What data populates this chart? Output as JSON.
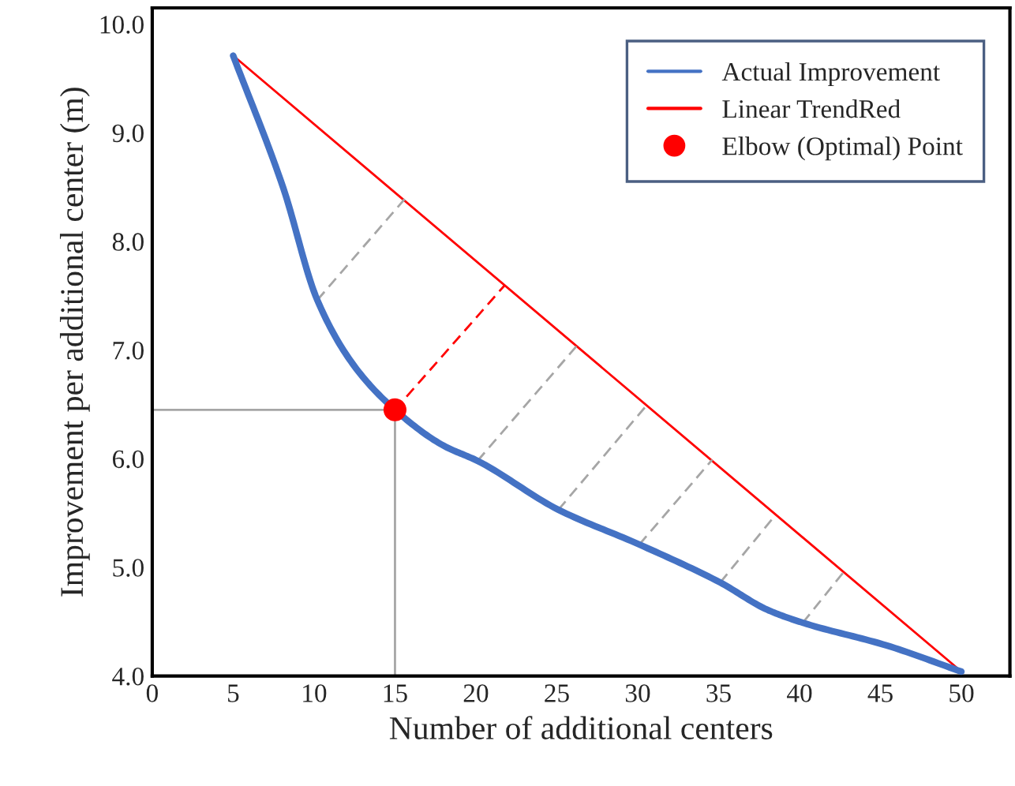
{
  "chart_data": {
    "type": "line",
    "xlabel": "Number of additional centers",
    "ylabel": "Improvement per additional center (m)",
    "xlim": [
      0,
      53
    ],
    "ylim": [
      4,
      10.15
    ],
    "xticks": [
      0,
      5,
      10,
      15,
      20,
      25,
      30,
      35,
      40,
      45,
      50
    ],
    "yticks": [
      {
        "value": 4,
        "label": "4.0"
      },
      {
        "value": 5,
        "label": "5.0"
      },
      {
        "value": 6,
        "label": "6.0"
      },
      {
        "value": 7,
        "label": "7.0"
      },
      {
        "value": 8,
        "label": "8.0"
      },
      {
        "value": 9,
        "label": "9.0"
      },
      {
        "value": 10,
        "label": "10.0"
      }
    ],
    "grid": false,
    "legend": "top right",
    "series": [
      {
        "type": "line",
        "name": "Actual Improvement",
        "color": "#4472c4",
        "x": [
          5,
          8.1,
          10.2,
          12.5,
          15,
          18,
          20.1,
          25.1,
          30.1,
          35.1,
          38,
          40.2,
          45.4,
          50
        ],
        "values": [
          9.71,
          8.49,
          7.46,
          6.85,
          6.45,
          6.12,
          5.98,
          5.53,
          5.21,
          4.86,
          4.61,
          4.49,
          4.28,
          4.04
        ]
      },
      {
        "type": "line",
        "name": "Linear TrendRed",
        "color": "#ff0000",
        "x": [
          5,
          50
        ],
        "values": [
          9.71,
          4.04
        ]
      },
      {
        "type": "line",
        "color": "#a6a6a6",
        "x": [
          0,
          15
        ],
        "values": [
          6.45,
          6.45
        ]
      },
      {
        "type": "line",
        "color": "#a6a6a6",
        "x": [
          15,
          15
        ],
        "values": [
          4,
          6.45
        ]
      },
      {
        "type": "line",
        "color": "#a6a6a6",
        "line_style": "dashed",
        "x": [
          10.2,
          15.6
        ],
        "values": [
          7.46,
          8.39
        ]
      },
      {
        "type": "line",
        "color": "#ff0000",
        "line_style": "dashed",
        "x": [
          15,
          21.8
        ],
        "values": [
          6.45,
          7.6
        ]
      },
      {
        "type": "line",
        "color": "#a6a6a6",
        "line_style": "dashed",
        "x": [
          20.1,
          26.3
        ],
        "values": [
          5.98,
          7.05
        ]
      },
      {
        "type": "line",
        "color": "#a6a6a6",
        "line_style": "dashed",
        "x": [
          25.1,
          30.6
        ],
        "values": [
          5.53,
          6.5
        ]
      },
      {
        "type": "line",
        "color": "#a6a6a6",
        "line_style": "dashed",
        "x": [
          30.1,
          34.6
        ],
        "values": [
          5.21,
          5.99
        ]
      },
      {
        "type": "line",
        "color": "#a6a6a6",
        "line_style": "dashed",
        "x": [
          35.1,
          38.5
        ],
        "values": [
          4.86,
          5.48
        ]
      },
      {
        "type": "line",
        "color": "#a6a6a6",
        "line_style": "dashed",
        "x": [
          40.2,
          42.8
        ],
        "values": [
          4.49,
          4.97
        ]
      },
      {
        "type": "scatter",
        "name": "Elbow (Optimal) Point",
        "color": "#ff0000",
        "marker": "circle",
        "x": [
          15
        ],
        "values": [
          6.45
        ]
      }
    ]
  }
}
